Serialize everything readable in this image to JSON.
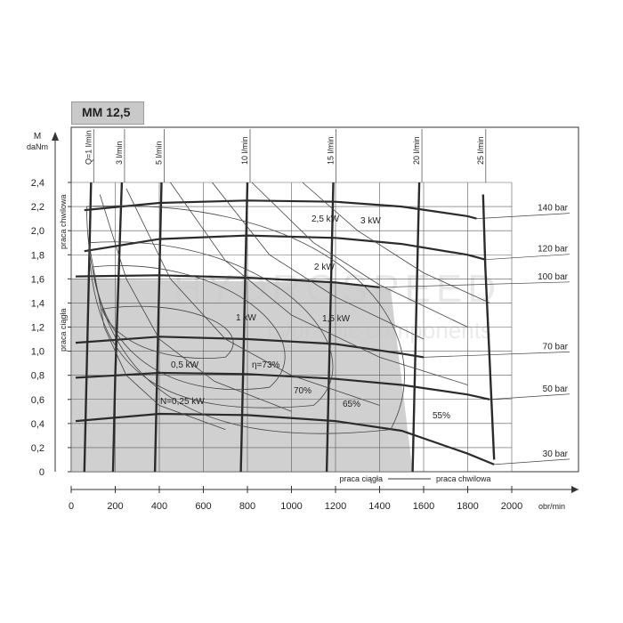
{
  "chart_data": {
    "type": "line",
    "title": "MM 12,5",
    "ylabel": "M daNm",
    "ylabel_parts": [
      "M",
      "daNm"
    ],
    "xlabel": "obr/min",
    "xlim": [
      0,
      2000
    ],
    "ylim": [
      0,
      2.4
    ],
    "x_ticks": [
      "0",
      "200",
      "400",
      "600",
      "800",
      "1000",
      "1200",
      "1400",
      "1600",
      "1800",
      "2000"
    ],
    "y_ticks": [
      "0",
      "0,2",
      "0,4",
      "0,6",
      "0,8",
      "1,0",
      "1,2",
      "1,4",
      "1,6",
      "1,8",
      "2,0",
      "2,2",
      "2,4"
    ],
    "grid": true,
    "pressure_curves": [
      {
        "name": "140 bar",
        "points": [
          [
            60,
            2.17
          ],
          [
            400,
            2.23
          ],
          [
            800,
            2.25
          ],
          [
            1200,
            2.24
          ],
          [
            1500,
            2.2
          ],
          [
            1800,
            2.12
          ],
          [
            1840,
            2.1
          ]
        ]
      },
      {
        "name": "120 bar",
        "points": [
          [
            60,
            1.83
          ],
          [
            400,
            1.93
          ],
          [
            800,
            1.96
          ],
          [
            1200,
            1.94
          ],
          [
            1500,
            1.89
          ],
          [
            1800,
            1.8
          ],
          [
            1880,
            1.76
          ]
        ]
      },
      {
        "name": "100 bar",
        "points": [
          [
            20,
            1.62
          ],
          [
            400,
            1.63
          ],
          [
            800,
            1.61
          ],
          [
            1200,
            1.57
          ],
          [
            1400,
            1.53
          ]
        ]
      },
      {
        "name": "70 bar",
        "points": [
          [
            20,
            1.07
          ],
          [
            400,
            1.12
          ],
          [
            800,
            1.1
          ],
          [
            1200,
            1.06
          ],
          [
            1500,
            0.98
          ],
          [
            1600,
            0.95
          ]
        ]
      },
      {
        "name": "50 bar",
        "points": [
          [
            20,
            0.78
          ],
          [
            400,
            0.82
          ],
          [
            800,
            0.81
          ],
          [
            1200,
            0.77
          ],
          [
            1500,
            0.72
          ],
          [
            1800,
            0.64
          ],
          [
            1900,
            0.6
          ]
        ]
      },
      {
        "name": "30 bar",
        "points": [
          [
            20,
            0.42
          ],
          [
            400,
            0.48
          ],
          [
            800,
            0.47
          ],
          [
            1200,
            0.42
          ],
          [
            1500,
            0.34
          ],
          [
            1800,
            0.15
          ],
          [
            1920,
            0.06
          ]
        ]
      }
    ],
    "flow_lines": [
      {
        "name": "Q=1 l/min",
        "points": [
          [
            90,
            2.4
          ],
          [
            80,
            1.6
          ],
          [
            70,
            0.8
          ],
          [
            60,
            0
          ]
        ]
      },
      {
        "name": "3 l/min",
        "points": [
          [
            230,
            2.4
          ],
          [
            215,
            1.6
          ],
          [
            200,
            0.8
          ],
          [
            190,
            0
          ]
        ]
      },
      {
        "name": "5 l/min",
        "points": [
          [
            410,
            2.4
          ],
          [
            400,
            1.6
          ],
          [
            390,
            0.8
          ],
          [
            380,
            0
          ]
        ]
      },
      {
        "name": "10 l/min",
        "points": [
          [
            800,
            2.4
          ],
          [
            790,
            1.6
          ],
          [
            780,
            0.8
          ],
          [
            770,
            0
          ]
        ]
      },
      {
        "name": "15 l/min",
        "points": [
          [
            1190,
            2.4
          ],
          [
            1180,
            1.6
          ],
          [
            1170,
            0.8
          ],
          [
            1160,
            0
          ]
        ]
      },
      {
        "name": "20 l/min",
        "points": [
          [
            1580,
            2.4
          ],
          [
            1570,
            1.6
          ],
          [
            1560,
            0.8
          ],
          [
            1550,
            0
          ]
        ]
      },
      {
        "name": "25 l/min",
        "points": [
          [
            1870,
            2.3
          ],
          [
            1880,
            1.7
          ],
          [
            1900,
            0.9
          ],
          [
            1920,
            0.1
          ]
        ]
      }
    ],
    "power_labels": [
      "N=0,25 kW",
      "0,5 kW",
      "1 kW",
      "1,5 kW",
      "2 kW",
      "2,5 kW",
      "3 kW"
    ],
    "efficiency_labels": [
      "η=73%",
      "70%",
      "65%",
      "55%"
    ],
    "continuous_work_x": 1550,
    "continuous_work_y": 1.6,
    "zone_labels": {
      "continuous": "praca ciągła",
      "intermittent": "praca chwilowa"
    }
  },
  "watermark": {
    "line1": "HYDROSPEED",
    "line2": "hydraulic components"
  },
  "colors": {
    "axis": "#333333",
    "grid": "#5a5a5a",
    "shade": "#c8c8c8",
    "curve": "#2b2b2b",
    "thin": "#444444"
  }
}
